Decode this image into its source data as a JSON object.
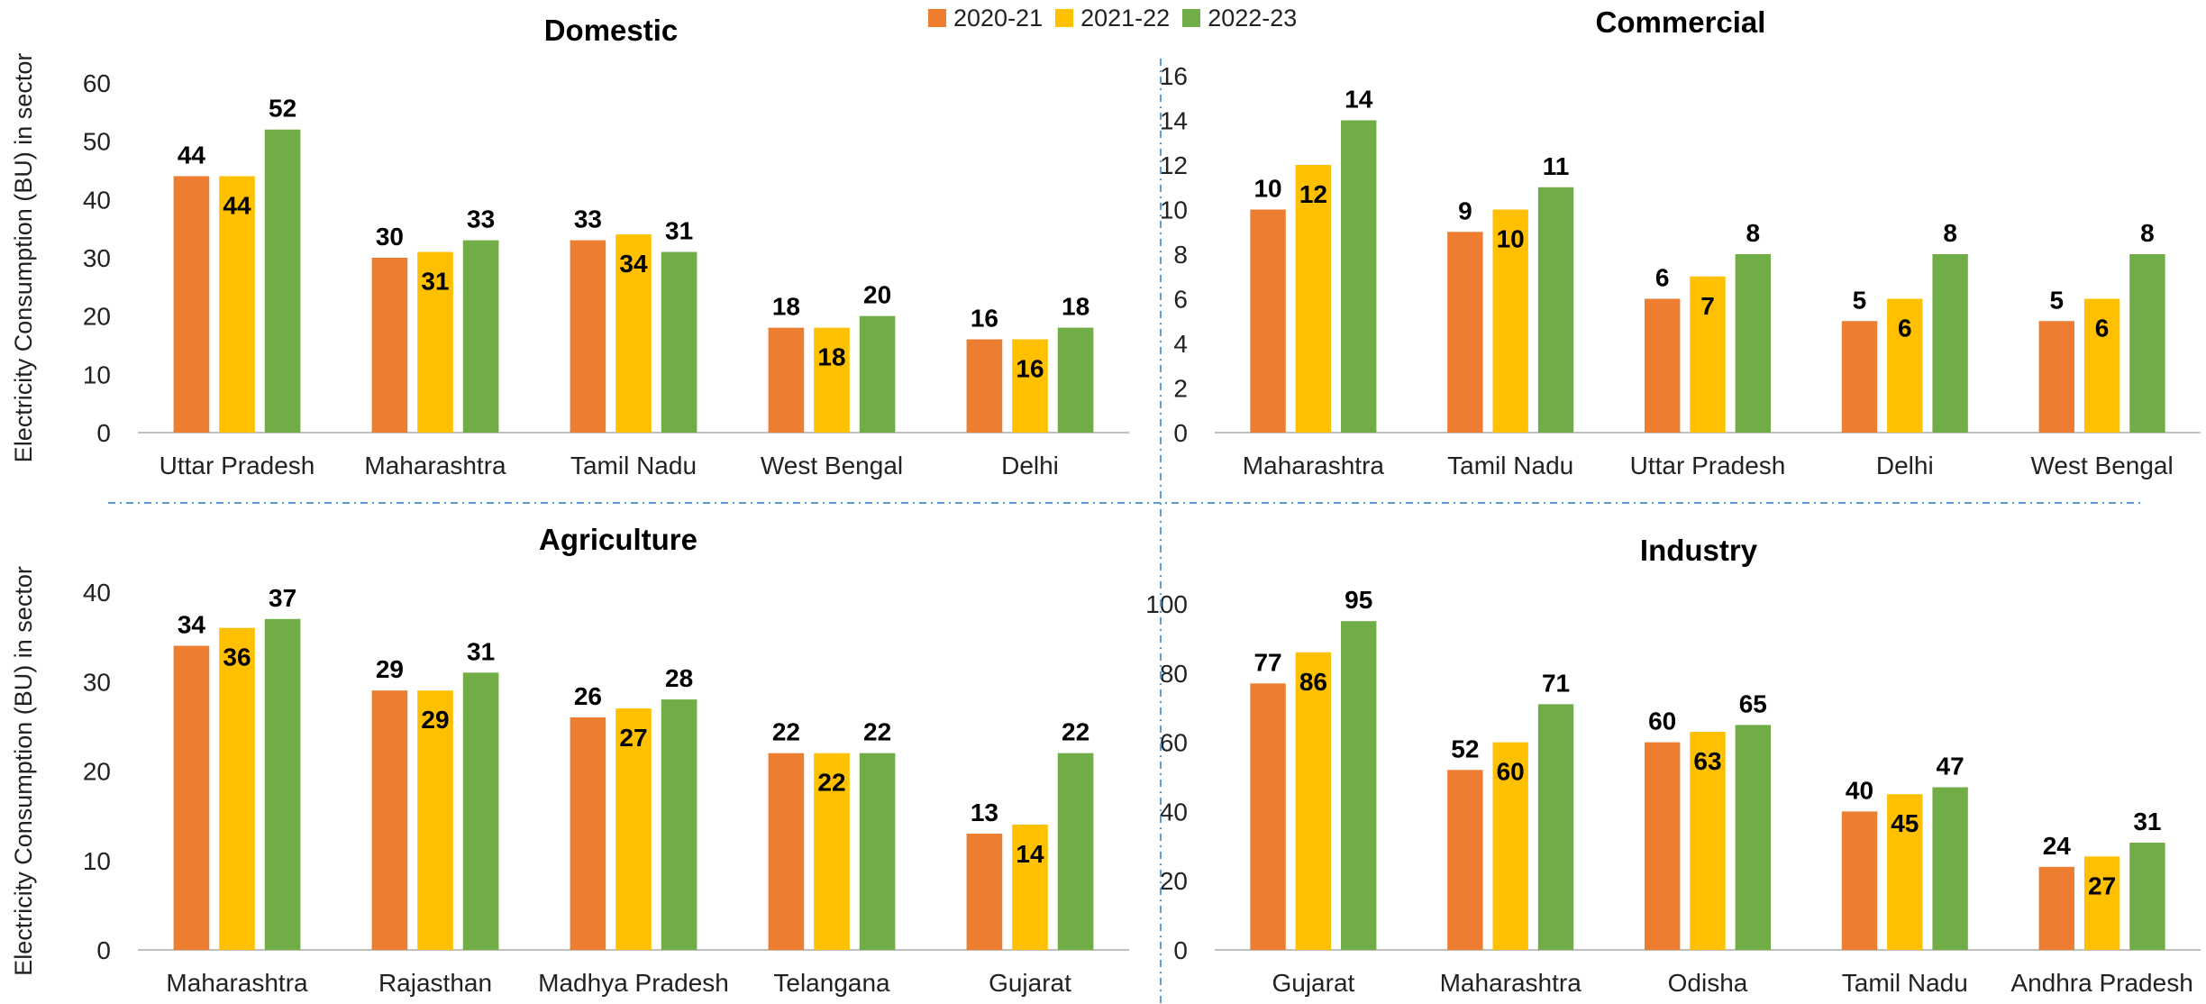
{
  "colors": {
    "s1": "#ED7D31",
    "s2": "#FFC000",
    "s3": "#70AD47"
  },
  "legend": [
    "2020-21",
    "2021-22",
    "2022-23"
  ],
  "ylabel": "Electricity Consumption (BU) in sector",
  "chart_data": [
    {
      "type": "bar",
      "title": "Domestic",
      "categories": [
        "Uttar Pradesh",
        "Maharashtra",
        "Tamil Nadu",
        "West Bengal",
        "Delhi"
      ],
      "series": [
        {
          "name": "2020-21",
          "values": [
            44,
            30,
            33,
            18,
            16
          ]
        },
        {
          "name": "2021-22",
          "values": [
            44,
            31,
            34,
            18,
            16
          ]
        },
        {
          "name": "2022-23",
          "values": [
            52,
            33,
            31,
            20,
            18
          ]
        }
      ],
      "ylim": [
        0,
        60
      ],
      "yticks": [
        0,
        10,
        20,
        30,
        40,
        50,
        60
      ],
      "ylabel": "Electricity Consumption (BU) in sector",
      "grid": false
    },
    {
      "type": "bar",
      "title": "Commercial",
      "categories": [
        "Maharashtra",
        "Tamil Nadu",
        "Uttar Pradesh",
        "Delhi",
        "West Bengal"
      ],
      "series": [
        {
          "name": "2020-21",
          "values": [
            10,
            9,
            6,
            5,
            5
          ]
        },
        {
          "name": "2021-22",
          "values": [
            12,
            10,
            7,
            6,
            6
          ]
        },
        {
          "name": "2022-23",
          "values": [
            14,
            11,
            8,
            8,
            8
          ]
        }
      ],
      "ylim": [
        0,
        16
      ],
      "yticks": [
        0,
        2,
        4,
        6,
        8,
        10,
        12,
        14,
        16
      ],
      "grid": false
    },
    {
      "type": "bar",
      "title": "Agriculture",
      "categories": [
        "Maharashtra",
        "Rajasthan",
        "Madhya Pradesh",
        "Telangana",
        "Gujarat"
      ],
      "series": [
        {
          "name": "2020-21",
          "values": [
            34,
            29,
            26,
            22,
            13
          ]
        },
        {
          "name": "2021-22",
          "values": [
            36,
            29,
            27,
            22,
            14
          ]
        },
        {
          "name": "2022-23",
          "values": [
            37,
            31,
            28,
            22,
            22
          ]
        }
      ],
      "ylim": [
        0,
        40
      ],
      "yticks": [
        0,
        10,
        20,
        30,
        40
      ],
      "ylabel": "Electricity Consumption (BU) in sector",
      "grid": false
    },
    {
      "type": "bar",
      "title": "Industry",
      "categories": [
        "Gujarat",
        "Maharashtra",
        "Odisha",
        "Tamil Nadu",
        "Andhra Pradesh"
      ],
      "series": [
        {
          "name": "2020-21",
          "values": [
            77,
            52,
            60,
            40,
            24
          ]
        },
        {
          "name": "2021-22",
          "values": [
            86,
            60,
            63,
            45,
            27
          ]
        },
        {
          "name": "2022-23",
          "values": [
            95,
            71,
            65,
            47,
            31
          ]
        }
      ],
      "ylim": [
        0,
        100
      ],
      "yticks": [
        0,
        20,
        40,
        60,
        80,
        100
      ],
      "grid": false
    }
  ]
}
